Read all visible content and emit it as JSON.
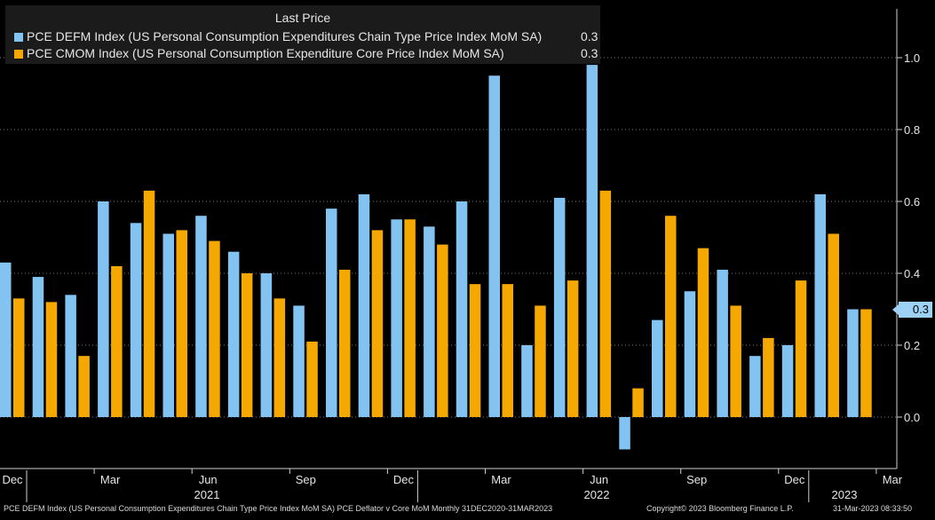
{
  "chart_data": {
    "type": "bar",
    "legend": {
      "title": "Last Price",
      "placement": "top-left",
      "entries": [
        {
          "label": "PCE DEFM Index (US Personal Consumption Expenditures Chain Type Price Index MoM SA)",
          "last": "0.3",
          "color": "#82c3f2"
        },
        {
          "label": "PCE CMOM Index (US Personal Consumption Expenditure Core Price Index MoM SA)",
          "last": "0.3",
          "color": "#f5a800"
        }
      ]
    },
    "categories": [
      "Dec 2020",
      "Jan 2021",
      "Feb 2021",
      "Mar 2021",
      "Apr 2021",
      "May 2021",
      "Jun 2021",
      "Jul 2021",
      "Aug 2021",
      "Sep 2021",
      "Oct 2021",
      "Nov 2021",
      "Dec 2021",
      "Jan 2022",
      "Feb 2022",
      "Mar 2022",
      "Apr 2022",
      "May 2022",
      "Jun 2022",
      "Jul 2022",
      "Aug 2022",
      "Sep 2022",
      "Oct 2022",
      "Nov 2022",
      "Dec 2022",
      "Jan 2023",
      "Feb 2023"
    ],
    "series": [
      {
        "name": "PCE DEFM Index (US Personal Consumption Expenditures Chain Type Price Index MoM SA)",
        "color": "#82c3f2",
        "values": [
          0.43,
          0.39,
          0.34,
          0.6,
          0.54,
          0.51,
          0.56,
          0.46,
          0.4,
          0.31,
          0.58,
          0.62,
          0.55,
          0.53,
          0.6,
          0.95,
          0.2,
          0.61,
          0.98,
          -0.09,
          0.27,
          0.35,
          0.41,
          0.17,
          0.2,
          0.62,
          0.3
        ]
      },
      {
        "name": "PCE CMOM Index (US Personal Consumption Expenditure Core Price Index MoM SA)",
        "color": "#f5a800",
        "values": [
          0.33,
          0.32,
          0.17,
          0.42,
          0.63,
          0.52,
          0.49,
          0.4,
          0.33,
          0.21,
          0.41,
          0.52,
          0.55,
          0.48,
          0.37,
          0.37,
          0.31,
          0.38,
          0.63,
          0.08,
          0.56,
          0.47,
          0.31,
          0.22,
          0.38,
          0.51,
          0.3
        ]
      }
    ],
    "y_axis": {
      "side": "right",
      "ylim": [
        -0.1,
        1.12
      ],
      "ticks": [
        "1.0",
        "0.8",
        "0.6",
        "0.4",
        "0.2",
        "0.0"
      ],
      "grid": true,
      "grid_style": "dotted"
    },
    "x_axis": {
      "month_labels": [
        "Dec",
        "Mar",
        "Jun",
        "Sep",
        "Dec",
        "Mar",
        "Jun",
        "Sep",
        "Dec",
        "Mar"
      ],
      "year_labels": [
        "2021",
        "2022",
        "2023"
      ]
    },
    "last_value_badge": "0.3"
  },
  "footer": {
    "left": "PCE DEFM Index (US Personal Consumption Expenditures Chain Type Price Index MoM SA) PCE Deflator v Core MoM  Monthly 31DEC2020-31MAR2023",
    "copyright": "Copyright© 2023 Bloomberg Finance L.P.",
    "timestamp": "31-Mar-2023 08:33:50"
  }
}
